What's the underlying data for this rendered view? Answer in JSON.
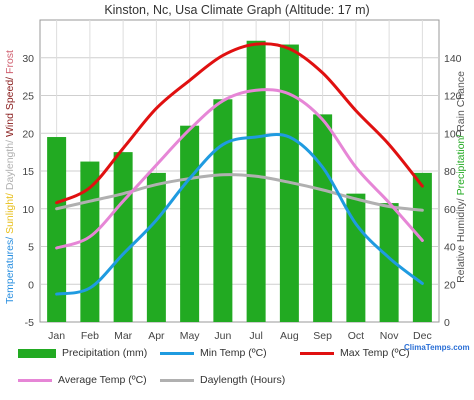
{
  "title": "Kinston, Nc, Usa Climate Graph (Altitude: 17 m)",
  "brand": "ClimaTemps.com",
  "colors": {
    "precip": "#22aa22",
    "min": "#1f9be0",
    "max": "#e01010",
    "avg": "#e686d6",
    "day": "#b0b0b0",
    "temp_axis": "#2a8fe0",
    "sunlight_axis": "#e8c020",
    "wind_axis": "#8a2020",
    "frost_axis": "#d06070",
    "humidity_axis": "#555555",
    "precip_axis": "#22aa22"
  },
  "left_axis_label_parts": [
    {
      "text": "Temperatures/ ",
      "color": "temp_axis"
    },
    {
      "text": "Sunlight/ ",
      "color": "sunlight_axis"
    },
    {
      "text": "Daylength/ ",
      "color": "day"
    },
    {
      "text": "Wind Speed/ ",
      "color": "wind_axis"
    },
    {
      "text": "Frost",
      "color": "frost_axis"
    }
  ],
  "right_axis_label_parts": [
    {
      "text": "Relative Humidity/ ",
      "color": "humidity_axis"
    },
    {
      "text": "Precipitation/ ",
      "color": "precip_axis"
    },
    {
      "text": "Rain Chance",
      "color": "humidity_axis"
    }
  ],
  "legend": {
    "precip": "Precipitation (mm)",
    "min": "Min Temp (ºC)",
    "max": "Max Temp (ºC)",
    "avg": "Average Temp (ºC)",
    "day": "Daylength (Hours)"
  },
  "chart_data": {
    "type": "bar",
    "categories": [
      "Jan",
      "Feb",
      "Mar",
      "Apr",
      "May",
      "Jun",
      "Jul",
      "Aug",
      "Sep",
      "Oct",
      "Nov",
      "Dec"
    ],
    "left_axis": {
      "ylim": [
        -5,
        35
      ],
      "ticks": [
        -5,
        0,
        5,
        10,
        15,
        20,
        25,
        30
      ]
    },
    "right_axis": {
      "ylim": [
        0,
        160
      ],
      "ticks": [
        0,
        20,
        40,
        60,
        80,
        100,
        120,
        140
      ]
    },
    "series": [
      {
        "name": "Precipitation (mm)",
        "kind": "bar",
        "axis": "right",
        "color": "precip",
        "values": [
          98,
          85,
          90,
          79,
          104,
          118,
          149,
          147,
          110,
          68,
          63,
          79
        ]
      },
      {
        "name": "Min Temp (ºC)",
        "kind": "line",
        "axis": "left",
        "color": "min",
        "values": [
          -1.3,
          -0.5,
          4.0,
          8.5,
          14.0,
          18.5,
          19.5,
          19.5,
          15.5,
          8.0,
          3.5,
          0.1
        ]
      },
      {
        "name": "Max Temp (ºC)",
        "kind": "line",
        "axis": "left",
        "color": "max",
        "values": [
          10.8,
          12.8,
          18.0,
          23.3,
          27.0,
          30.3,
          31.8,
          31.2,
          28.0,
          23.0,
          18.5,
          13.0
        ]
      },
      {
        "name": "Average Temp (ºC)",
        "kind": "line",
        "axis": "left",
        "color": "avg",
        "values": [
          4.8,
          6.3,
          11.0,
          15.8,
          20.5,
          24.3,
          25.7,
          25.2,
          21.8,
          15.5,
          10.8,
          5.8
        ]
      },
      {
        "name": "Daylength (Hours)",
        "kind": "line",
        "axis": "left",
        "color": "day",
        "values": [
          10.0,
          11.0,
          12.0,
          13.2,
          14.0,
          14.5,
          14.3,
          13.5,
          12.5,
          11.3,
          10.3,
          9.8
        ]
      }
    ],
    "grid": true
  }
}
